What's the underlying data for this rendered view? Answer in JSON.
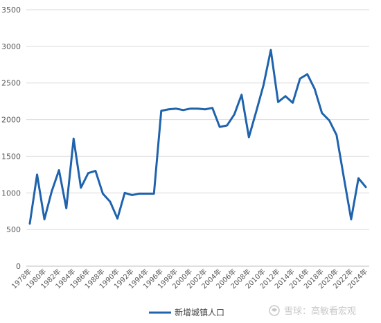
{
  "watermark": {
    "text": "雪球：高敏看宏观"
  },
  "chart_data": {
    "type": "line",
    "title": "",
    "xlabel": "",
    "ylabel": "",
    "ylim": [
      0,
      3500
    ],
    "yticks": [
      0,
      500,
      1000,
      1500,
      2000,
      2500,
      3000,
      3500
    ],
    "grid": true,
    "legend_position": "bottom",
    "x": [
      1978,
      1979,
      1980,
      1981,
      1982,
      1983,
      1984,
      1985,
      1986,
      1987,
      1988,
      1989,
      1990,
      1991,
      1992,
      1993,
      1994,
      1995,
      1996,
      1997,
      1998,
      1999,
      2000,
      2001,
      2002,
      2003,
      2004,
      2005,
      2006,
      2007,
      2008,
      2009,
      2010,
      2011,
      2012,
      2013,
      2014,
      2015,
      2016,
      2017,
      2018,
      2019,
      2020,
      2021,
      2022,
      2023,
      2024
    ],
    "x_tick_labels": [
      "1978年",
      "1980年",
      "1982年",
      "1984年",
      "1986年",
      "1988年",
      "1990年",
      "1992年",
      "1994年",
      "1996年",
      "1998年",
      "2000年",
      "2002年",
      "2004年",
      "2006年",
      "2008年",
      "2010年",
      "2012年",
      "2014年",
      "2016年",
      "2018年",
      "2020年",
      "2022年",
      "2024年"
    ],
    "series": [
      {
        "name": "新增城镇人口",
        "color": "#1f63ad",
        "values": [
          580,
          1250,
          640,
          1020,
          1310,
          790,
          1740,
          1070,
          1270,
          1300,
          990,
          880,
          650,
          1000,
          970,
          990,
          990,
          990,
          2120,
          2140,
          2150,
          2130,
          2150,
          2150,
          2140,
          2160,
          1900,
          1920,
          2070,
          2340,
          1760,
          2110,
          2470,
          2950,
          2240,
          2320,
          2230,
          2560,
          2620,
          2420,
          2090,
          1990,
          1790,
          1210,
          640,
          1200,
          1080
        ]
      }
    ]
  }
}
